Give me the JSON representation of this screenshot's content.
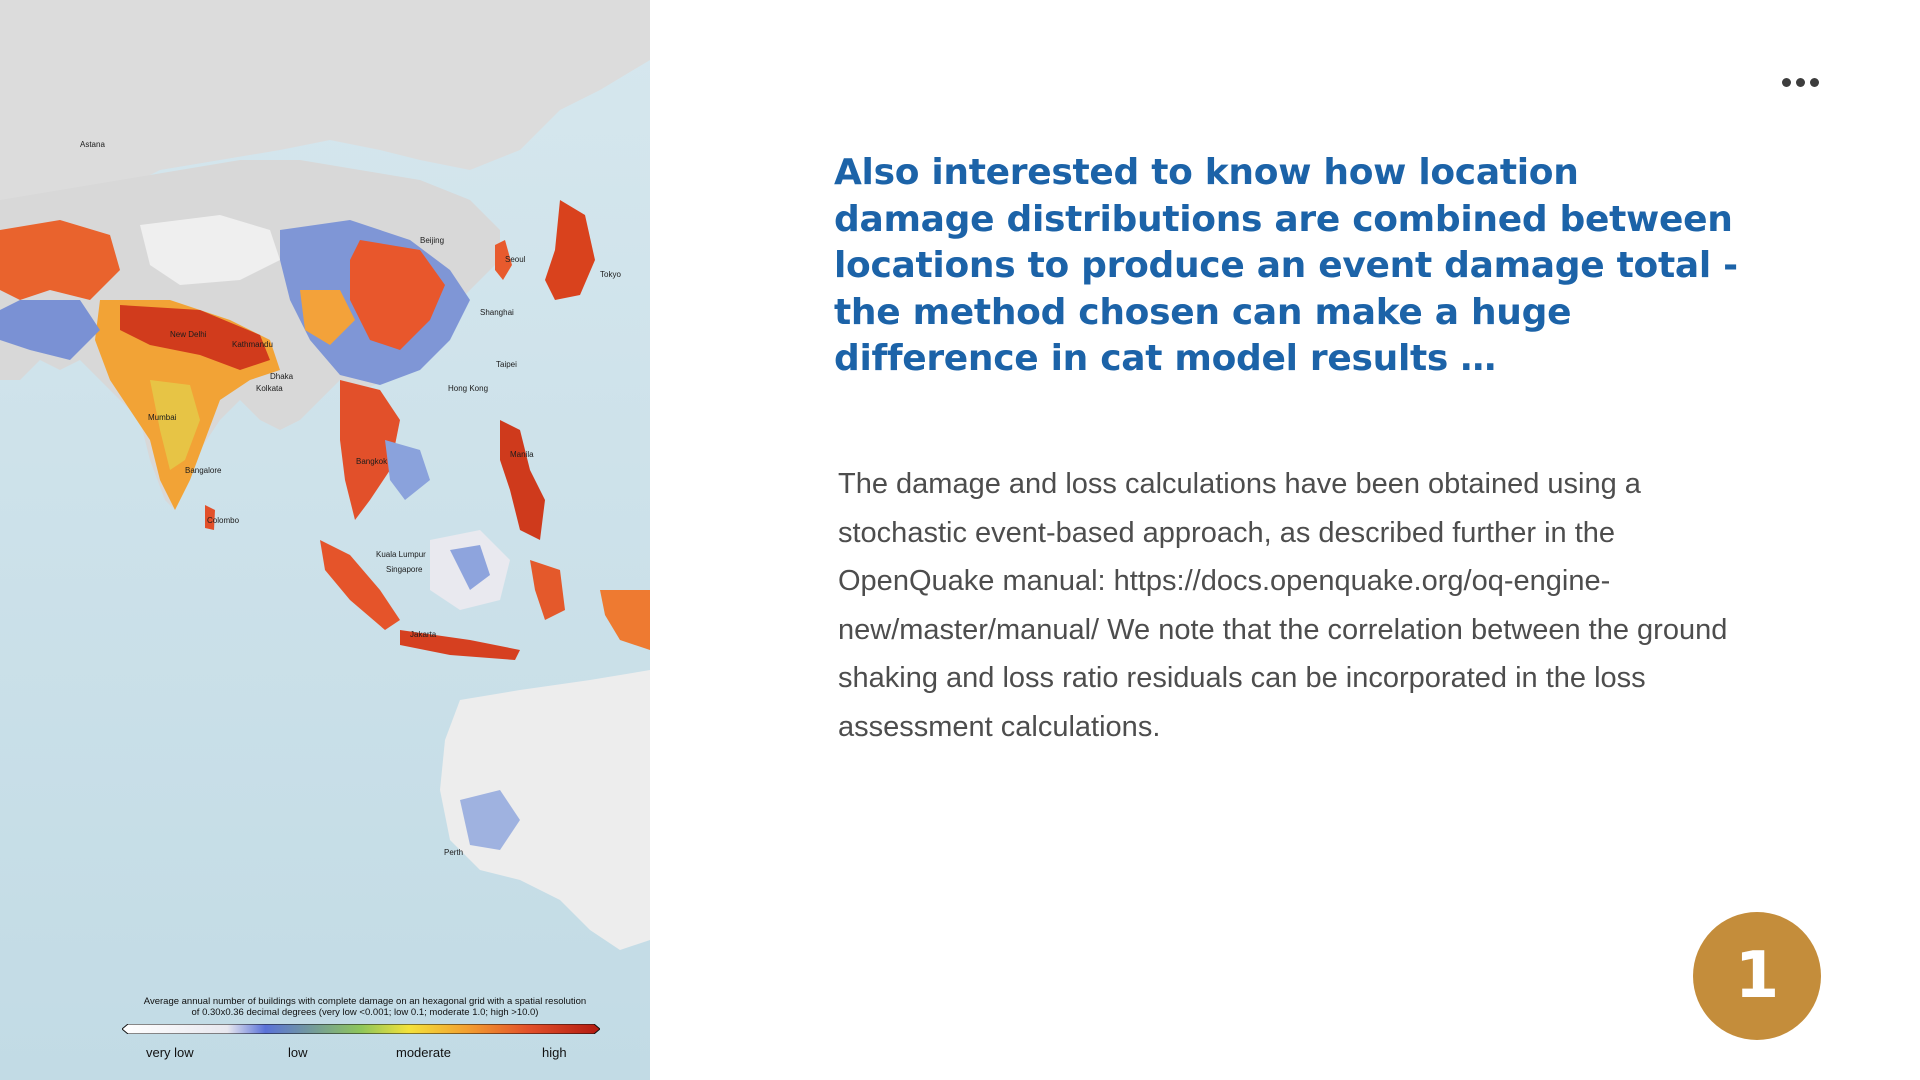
{
  "map": {
    "cities": [
      {
        "name": "Astana"
      },
      {
        "name": "Beijing"
      },
      {
        "name": "Seoul"
      },
      {
        "name": "Tokyo"
      },
      {
        "name": "Shanghai"
      },
      {
        "name": "Taipei"
      },
      {
        "name": "Hong Kong"
      },
      {
        "name": "New Delhi"
      },
      {
        "name": "Kathmandu"
      },
      {
        "name": "Dhaka"
      },
      {
        "name": "Kolkata"
      },
      {
        "name": "Mumbai"
      },
      {
        "name": "Bangalore"
      },
      {
        "name": "Colombo"
      },
      {
        "name": "Bangkok"
      },
      {
        "name": "Manila"
      },
      {
        "name": "Kuala Lumpur"
      },
      {
        "name": "Singapore"
      },
      {
        "name": "Jakarta"
      },
      {
        "name": "Perth"
      }
    ],
    "legend": {
      "caption_line1": "Average annual number of buildings with complete damage on an hexagonal grid with a spatial resolution",
      "caption_line2": "of 0.30x0.36 decimal degrees  (very low <0.001; low 0.1; moderate 1.0; high >10.0)",
      "labels": {
        "very_low": "very low",
        "low": "low",
        "moderate": "moderate",
        "high": "high"
      },
      "colors": [
        "#ffffff",
        "#e8e8ef",
        "#5a72d8",
        "#8ec65a",
        "#f3e23a",
        "#f2a030",
        "#e2502a",
        "#b21a10"
      ]
    }
  },
  "slide": {
    "headline": "Also interested to know how location damage distributions are combined between locations to produce an event damage total - the method chosen can make a huge difference in cat model results …",
    "body": "The damage and loss calculations have been obtained using a stochastic event-based approach, as described further in the OpenQuake manual: https://docs.openquake.org/oq-engine-new/master/manual/  We note that the correlation between the ground shaking and loss ratio residuals can be incorporated in the loss assessment calculations.",
    "page_number": "1",
    "accent_color": "#1c63a8",
    "badge_color": "#c48d3b"
  }
}
